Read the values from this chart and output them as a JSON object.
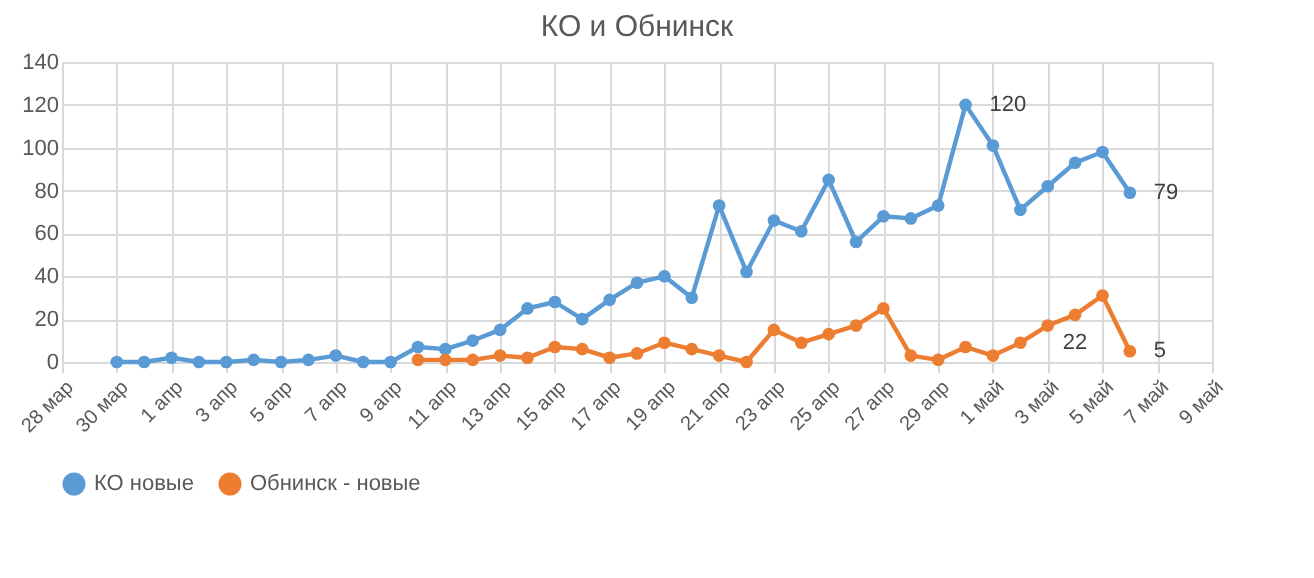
{
  "chart_data": {
    "type": "line",
    "title": "КО и Обнинск",
    "x": [
      "--03-30",
      "--03-31",
      "--04-01",
      "--04-02",
      "--04-03",
      "--04-04",
      "--04-05",
      "--04-06",
      "--04-07",
      "--04-08",
      "--04-09",
      "--04-10",
      "--04-11",
      "--04-12",
      "--04-13",
      "--04-14",
      "--04-15",
      "--04-16",
      "--04-17",
      "--04-18",
      "--04-19",
      "--04-20",
      "--04-21",
      "--04-22",
      "--04-23",
      "--04-24",
      "--04-25",
      "--04-26",
      "--04-27",
      "--04-28",
      "--04-29",
      "--04-30",
      "--05-01",
      "--05-02",
      "--05-03",
      "--05-04",
      "--05-05",
      "--05-06"
    ],
    "series": [
      {
        "name": "КО новые",
        "color": "#5b9bd5",
        "values": [
          0,
          0,
          2,
          0,
          0,
          1,
          0,
          1,
          3,
          0,
          0,
          7,
          6,
          10,
          15,
          25,
          28,
          20,
          29,
          37,
          40,
          30,
          73,
          42,
          66,
          61,
          85,
          56,
          68,
          67,
          73,
          120,
          101,
          71,
          82,
          93,
          98,
          79
        ],
        "value_labels": [
          null,
          null,
          null,
          null,
          null,
          null,
          null,
          null,
          null,
          null,
          null,
          null,
          null,
          null,
          null,
          null,
          null,
          null,
          null,
          null,
          null,
          null,
          null,
          null,
          null,
          null,
          null,
          null,
          null,
          null,
          null,
          "120",
          null,
          null,
          null,
          null,
          null,
          "79"
        ]
      },
      {
        "name": "Обнинск - новые",
        "color": "#ed7d31",
        "values": [
          null,
          null,
          null,
          null,
          null,
          null,
          null,
          null,
          null,
          null,
          null,
          1,
          1,
          1,
          3,
          2,
          7,
          6,
          2,
          4,
          9,
          6,
          3,
          0,
          15,
          9,
          13,
          17,
          25,
          3,
          1,
          7,
          3,
          9,
          17,
          22,
          31,
          5
        ],
        "value_labels": [
          null,
          null,
          null,
          null,
          null,
          null,
          null,
          null,
          null,
          null,
          null,
          null,
          null,
          null,
          null,
          null,
          null,
          null,
          null,
          null,
          null,
          null,
          null,
          null,
          null,
          null,
          null,
          null,
          null,
          null,
          null,
          null,
          null,
          null,
          null,
          "22",
          null,
          "5"
        ]
      }
    ],
    "xlim": [
      "--03-28",
      "--05-09"
    ],
    "xticks": [
      {
        "value": "--03-28",
        "label": "28 мар"
      },
      {
        "value": "--03-30",
        "label": "30 мар"
      },
      {
        "value": "--04-01",
        "label": "1 апр"
      },
      {
        "value": "--04-03",
        "label": "3 апр"
      },
      {
        "value": "--04-05",
        "label": "5 апр"
      },
      {
        "value": "--04-07",
        "label": "7 апр"
      },
      {
        "value": "--04-09",
        "label": "9 апр"
      },
      {
        "value": "--04-11",
        "label": "11 апр"
      },
      {
        "value": "--04-13",
        "label": "13 апр"
      },
      {
        "value": "--04-15",
        "label": "15 апр"
      },
      {
        "value": "--04-17",
        "label": "17 апр"
      },
      {
        "value": "--04-19",
        "label": "19 апр"
      },
      {
        "value": "--04-21",
        "label": "21 апр"
      },
      {
        "value": "--04-23",
        "label": "23 апр"
      },
      {
        "value": "--04-25",
        "label": "25 апр"
      },
      {
        "value": "--04-27",
        "label": "27 апр"
      },
      {
        "value": "--04-29",
        "label": "29 апр"
      },
      {
        "value": "--05-01",
        "label": "1 май"
      },
      {
        "value": "--05-03",
        "label": "3 май"
      },
      {
        "value": "--05-05",
        "label": "5 май"
      },
      {
        "value": "--05-07",
        "label": "7 май"
      },
      {
        "value": "--05-09",
        "label": "9 май"
      }
    ],
    "ylim": [
      0,
      140
    ],
    "yticks": [
      0,
      20,
      40,
      60,
      80,
      100,
      120,
      140
    ],
    "grid": true,
    "legend": "bottom",
    "marker": "circle",
    "line_style": "solid"
  }
}
